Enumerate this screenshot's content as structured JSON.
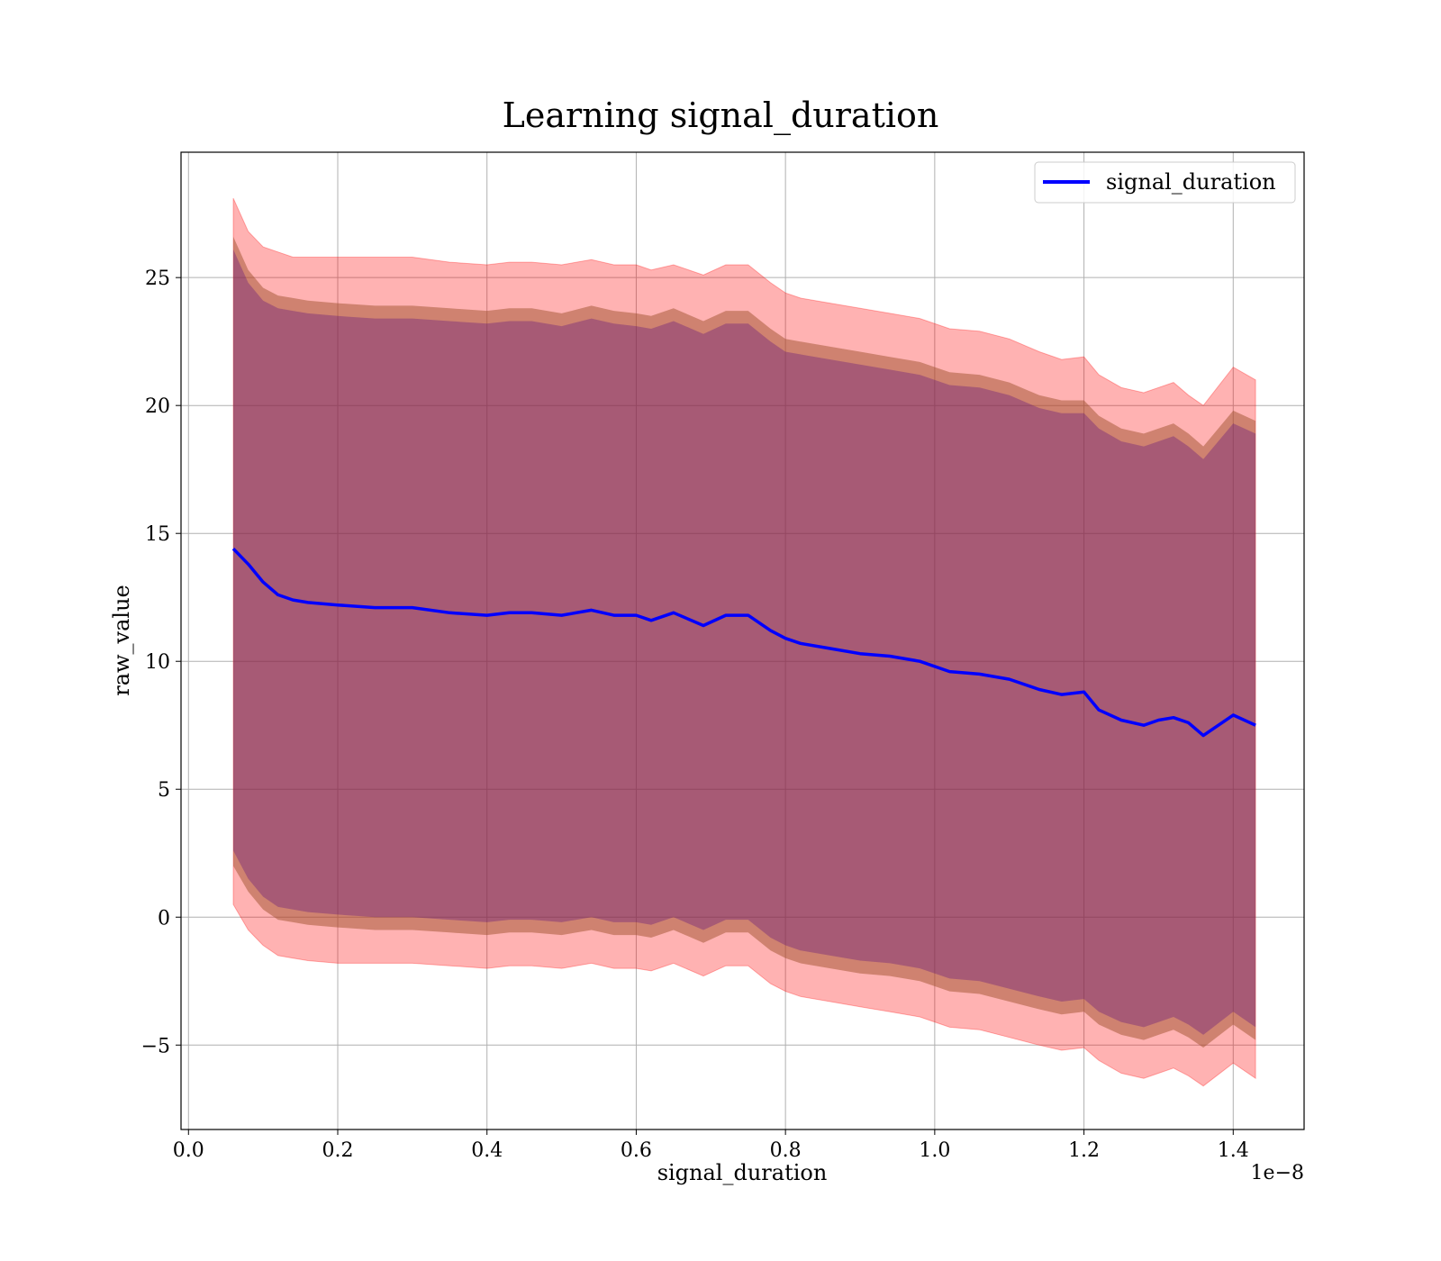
{
  "chart_data": {
    "type": "line",
    "title": "Learning signal_duration",
    "xlabel": "signal_duration",
    "ylabel": "raw_value",
    "x_offset_text": "1e−8",
    "x_scale": 1e-08,
    "xlim": [
      -0.01,
      1.495
    ],
    "ylim": [
      -8.3,
      29.9
    ],
    "xticks": [
      0.0,
      0.2,
      0.4,
      0.6,
      0.8,
      1.0,
      1.2,
      1.4
    ],
    "xtick_labels": [
      "0.0",
      "0.2",
      "0.4",
      "0.6",
      "0.8",
      "1.0",
      "1.2",
      "1.4"
    ],
    "yticks": [
      -5,
      0,
      5,
      10,
      15,
      20,
      25
    ],
    "ytick_labels": [
      "−5",
      "0",
      "5",
      "10",
      "15",
      "20",
      "25"
    ],
    "grid": true,
    "legend": {
      "position": "top-right",
      "entries": [
        "signal_duration"
      ]
    },
    "colors": {
      "line": "#0000ff",
      "band_outer": "#ff0000",
      "band_middle": "#a0522d",
      "band_inner": "#4b0082"
    },
    "series": [
      {
        "name": "signal_duration",
        "x": [
          0.06,
          0.08,
          0.1,
          0.12,
          0.14,
          0.16,
          0.2,
          0.25,
          0.3,
          0.35,
          0.4,
          0.43,
          0.46,
          0.5,
          0.54,
          0.57,
          0.6,
          0.62,
          0.65,
          0.69,
          0.72,
          0.75,
          0.78,
          0.8,
          0.82,
          0.86,
          0.9,
          0.94,
          0.98,
          1.02,
          1.06,
          1.1,
          1.14,
          1.17,
          1.2,
          1.22,
          1.25,
          1.28,
          1.3,
          1.32,
          1.34,
          1.36,
          1.4,
          1.43
        ],
        "y": [
          14.4,
          13.8,
          13.1,
          12.6,
          12.4,
          12.3,
          12.2,
          12.1,
          12.1,
          11.9,
          11.8,
          11.9,
          11.9,
          11.8,
          12.0,
          11.8,
          11.8,
          11.6,
          11.9,
          11.4,
          11.8,
          11.8,
          11.2,
          10.9,
          10.7,
          10.5,
          10.3,
          10.2,
          10.0,
          9.6,
          9.5,
          9.3,
          8.9,
          8.7,
          8.8,
          8.1,
          7.7,
          7.5,
          7.7,
          7.8,
          7.6,
          7.1,
          7.9,
          7.5
        ],
        "band_outer_upper": [
          28.1,
          26.8,
          26.2,
          26.0,
          25.8,
          25.8,
          25.8,
          25.8,
          25.8,
          25.6,
          25.5,
          25.6,
          25.6,
          25.5,
          25.7,
          25.5,
          25.5,
          25.3,
          25.5,
          25.1,
          25.5,
          25.5,
          24.8,
          24.4,
          24.2,
          24.0,
          23.8,
          23.6,
          23.4,
          23.0,
          22.9,
          22.6,
          22.1,
          21.8,
          21.9,
          21.2,
          20.7,
          20.5,
          20.7,
          20.9,
          20.4,
          20.0,
          21.5,
          21.0
        ],
        "band_outer_lower": [
          0.5,
          -0.5,
          -1.1,
          -1.5,
          -1.6,
          -1.7,
          -1.8,
          -1.8,
          -1.8,
          -1.9,
          -2.0,
          -1.9,
          -1.9,
          -2.0,
          -1.8,
          -2.0,
          -2.0,
          -2.1,
          -1.8,
          -2.3,
          -1.9,
          -1.9,
          -2.6,
          -2.9,
          -3.1,
          -3.3,
          -3.5,
          -3.7,
          -3.9,
          -4.3,
          -4.4,
          -4.7,
          -5.0,
          -5.2,
          -5.1,
          -5.6,
          -6.1,
          -6.3,
          -6.1,
          -5.9,
          -6.2,
          -6.6,
          -5.7,
          -6.3
        ],
        "band_middle_upper": [
          26.6,
          25.3,
          24.6,
          24.3,
          24.2,
          24.1,
          24.0,
          23.9,
          23.9,
          23.8,
          23.7,
          23.8,
          23.8,
          23.6,
          23.9,
          23.7,
          23.6,
          23.5,
          23.8,
          23.3,
          23.7,
          23.7,
          23.0,
          22.6,
          22.5,
          22.3,
          22.1,
          21.9,
          21.7,
          21.3,
          21.2,
          20.9,
          20.4,
          20.2,
          20.2,
          19.6,
          19.1,
          18.9,
          19.1,
          19.3,
          18.9,
          18.4,
          19.8,
          19.4
        ],
        "band_middle_lower": [
          2.0,
          1.0,
          0.3,
          -0.1,
          -0.2,
          -0.3,
          -0.4,
          -0.5,
          -0.5,
          -0.6,
          -0.7,
          -0.6,
          -0.6,
          -0.7,
          -0.5,
          -0.7,
          -0.7,
          -0.8,
          -0.5,
          -1.0,
          -0.6,
          -0.6,
          -1.3,
          -1.6,
          -1.8,
          -2.0,
          -2.2,
          -2.3,
          -2.5,
          -2.9,
          -3.0,
          -3.3,
          -3.6,
          -3.8,
          -3.7,
          -4.2,
          -4.6,
          -4.8,
          -4.6,
          -4.4,
          -4.7,
          -5.1,
          -4.2,
          -4.8
        ],
        "band_inner_upper": [
          26.1,
          24.8,
          24.1,
          23.8,
          23.7,
          23.6,
          23.5,
          23.4,
          23.4,
          23.3,
          23.2,
          23.3,
          23.3,
          23.1,
          23.4,
          23.2,
          23.1,
          23.0,
          23.3,
          22.8,
          23.2,
          23.2,
          22.5,
          22.1,
          22.0,
          21.8,
          21.6,
          21.4,
          21.2,
          20.8,
          20.7,
          20.4,
          19.9,
          19.7,
          19.7,
          19.1,
          18.6,
          18.4,
          18.6,
          18.8,
          18.4,
          17.9,
          19.3,
          18.9
        ],
        "band_inner_lower": [
          2.6,
          1.5,
          0.8,
          0.4,
          0.3,
          0.2,
          0.1,
          0.0,
          0.0,
          -0.1,
          -0.2,
          -0.1,
          -0.1,
          -0.2,
          0.0,
          -0.2,
          -0.2,
          -0.3,
          0.0,
          -0.5,
          -0.1,
          -0.1,
          -0.8,
          -1.1,
          -1.3,
          -1.5,
          -1.7,
          -1.8,
          -2.0,
          -2.4,
          -2.5,
          -2.8,
          -3.1,
          -3.3,
          -3.2,
          -3.7,
          -4.1,
          -4.3,
          -4.1,
          -3.9,
          -4.2,
          -4.6,
          -3.7,
          -4.3
        ]
      }
    ]
  }
}
